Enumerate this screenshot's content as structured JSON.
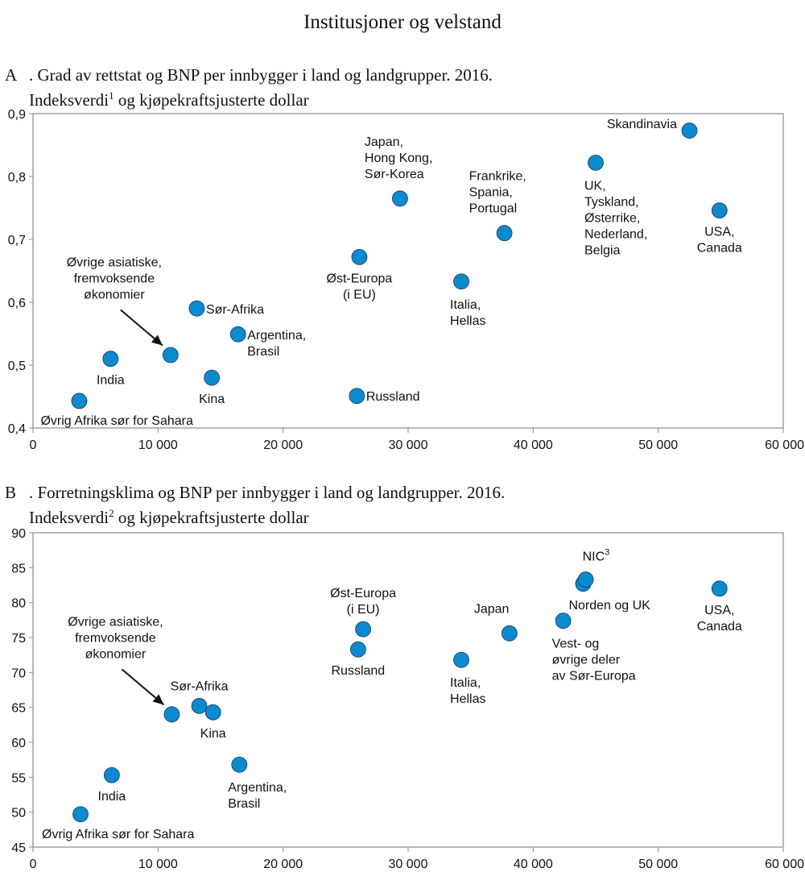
{
  "title": "Institusjoner og velstand",
  "point_color": "#0B8ACF",
  "chart_data": [
    {
      "type": "scatter",
      "panel": "A",
      "title_line1": "Grad av rettstat og BNP per innbygger i land og landgrupper. 2016.",
      "title_line2_pre": "Indeksverdi",
      "title_footnote": "1",
      "title_line2_post": " og kjøpekraftsjusterte dollar",
      "xlabel": "",
      "ylabel": "",
      "xlim": [
        0,
        60000
      ],
      "ylim": [
        0.4,
        0.9
      ],
      "xticks": [
        "0",
        "10 000",
        "20 000",
        "30 000",
        "40 000",
        "50 000",
        "60 000"
      ],
      "xtick_values": [
        0,
        10000,
        20000,
        30000,
        40000,
        50000,
        60000
      ],
      "yticks": [
        "0,4",
        "0,5",
        "0,6",
        "0,7",
        "0,8",
        "0,9"
      ],
      "ytick_values": [
        0.4,
        0.5,
        0.6,
        0.7,
        0.8,
        0.9
      ],
      "grid": false,
      "points": [
        {
          "label": [
            "Skandinavia"
          ],
          "x": 52500,
          "y": 0.873,
          "pos": "left"
        },
        {
          "label": [
            "UK,",
            "Tyskland,",
            "Østerrike,",
            "Nederland,",
            "Belgia"
          ],
          "x": 45000,
          "y": 0.822,
          "pos": "below-left"
        },
        {
          "label": [
            "USA,",
            "Canada"
          ],
          "x": 54900,
          "y": 0.746,
          "pos": "below"
        },
        {
          "label": [
            "Japan,",
            "Hong Kong,",
            "Sør-Korea"
          ],
          "x": 29350,
          "y": 0.765,
          "pos": "above-left"
        },
        {
          "label": [
            "Frankrike,",
            "Spania,",
            "Portugal"
          ],
          "x": 37700,
          "y": 0.71,
          "pos": "above-left"
        },
        {
          "label": [
            "Øst-Europa",
            "(i EU)"
          ],
          "x": 26100,
          "y": 0.672,
          "pos": "below"
        },
        {
          "label": [
            "Italia,",
            "Hellas"
          ],
          "x": 34250,
          "y": 0.633,
          "pos": "below-left"
        },
        {
          "label": [
            "Sør-Afrika"
          ],
          "x": 13100,
          "y": 0.59,
          "pos": "right"
        },
        {
          "label": [
            "Argentina,",
            "Brasil"
          ],
          "x": 16400,
          "y": 0.549,
          "pos": "right"
        },
        {
          "label": [
            "Øvrige asiatiske,",
            "fremvoksende",
            "økonomier"
          ],
          "x": 11000,
          "y": 0.516,
          "pos": "arrow"
        },
        {
          "label": [
            "India"
          ],
          "x": 6200,
          "y": 0.51,
          "pos": "below"
        },
        {
          "label": [
            "Kina"
          ],
          "x": 14300,
          "y": 0.48,
          "pos": "below"
        },
        {
          "label": [
            "Russland"
          ],
          "x": 25900,
          "y": 0.451,
          "pos": "right"
        },
        {
          "label": [
            "Øvrig Afrika sør for Sahara"
          ],
          "x": 3700,
          "y": 0.443,
          "pos": "below-wide"
        }
      ]
    },
    {
      "type": "scatter",
      "panel": "B",
      "title_line1": "Forretningsklima og BNP per innbygger i land og landgrupper. 2016.",
      "title_line2_pre": "Indeksverdi",
      "title_footnote": "2",
      "title_line2_post": " og kjøpekraftsjusterte dollar",
      "xlabel": "",
      "ylabel": "",
      "xlim": [
        0,
        60000
      ],
      "ylim": [
        45,
        90
      ],
      "xticks": [
        "0",
        "10 000",
        "20 000",
        "30 000",
        "40 000",
        "50 000",
        "60 000"
      ],
      "xtick_values": [
        0,
        10000,
        20000,
        30000,
        40000,
        50000,
        60000
      ],
      "yticks": [
        "45",
        "50",
        "55",
        "60",
        "65",
        "70",
        "75",
        "80",
        "85",
        "90"
      ],
      "ytick_values": [
        45,
        50,
        55,
        60,
        65,
        70,
        75,
        80,
        85,
        90
      ],
      "grid": false,
      "points": [
        {
          "label": [
            "Norden og UK"
          ],
          "x": 44000,
          "y": 82.7,
          "pos": "below-right"
        },
        {
          "label": [
            "NIC",
            "3"
          ],
          "x": 44200,
          "y": 83.3,
          "pos": "above-sup"
        },
        {
          "label": [
            "USA,",
            "Canada"
          ],
          "x": 54900,
          "y": 82.0,
          "pos": "below"
        },
        {
          "label": [
            "Øst-Europa",
            "(i EU)"
          ],
          "x": 26400,
          "y": 76.2,
          "pos": "above"
        },
        {
          "label": [
            "Vest- og",
            "øvrige deler",
            "av Sør-Europa"
          ],
          "x": 42400,
          "y": 77.4,
          "pos": "below-left"
        },
        {
          "label": [
            "Japan"
          ],
          "x": 38100,
          "y": 75.6,
          "pos": "above-left"
        },
        {
          "label": [
            "Russland"
          ],
          "x": 26000,
          "y": 73.3,
          "pos": "below"
        },
        {
          "label": [
            "Italia,",
            "Hellas"
          ],
          "x": 34250,
          "y": 71.8,
          "pos": "below-left"
        },
        {
          "label": [
            "Sør-Afrika"
          ],
          "x": 13300,
          "y": 65.2,
          "pos": "above"
        },
        {
          "label": [
            "Kina"
          ],
          "x": 14400,
          "y": 64.3,
          "pos": "below"
        },
        {
          "label": [
            "Øvrige asiatiske,",
            "fremvoksende",
            "økonomier"
          ],
          "x": 11100,
          "y": 64.0,
          "pos": "arrow"
        },
        {
          "label": [
            "Argentina,",
            "Brasil"
          ],
          "x": 16500,
          "y": 56.8,
          "pos": "below-left"
        },
        {
          "label": [
            "India"
          ],
          "x": 6300,
          "y": 55.3,
          "pos": "below"
        },
        {
          "label": [
            "Øvrig Afrika sør for Sahara"
          ],
          "x": 3800,
          "y": 49.7,
          "pos": "below-wide"
        }
      ]
    }
  ]
}
